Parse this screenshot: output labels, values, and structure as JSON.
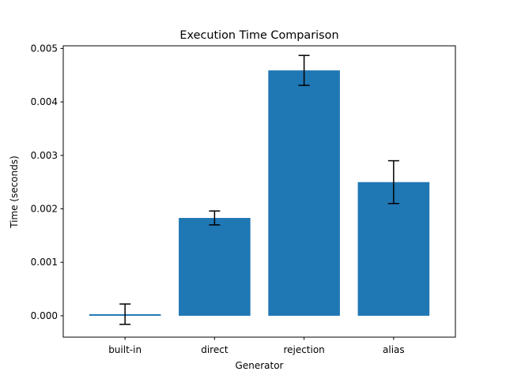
{
  "chart_data": {
    "type": "bar",
    "title": "Execution Time Comparison",
    "xlabel": "Generator",
    "ylabel": "Time (seconds)",
    "categories": [
      "built-in",
      "direct",
      "rejection",
      "alias"
    ],
    "values": [
      3e-05,
      0.00183,
      0.00459,
      0.0025
    ],
    "errors": [
      0.00019,
      0.00013,
      0.00028,
      0.0004
    ],
    "ylim": [
      -0.0004,
      0.00505
    ],
    "yticks": [
      0.0,
      0.001,
      0.002,
      0.003,
      0.004,
      0.005
    ],
    "ytick_labels": [
      "0.000",
      "0.001",
      "0.002",
      "0.003",
      "0.004",
      "0.005"
    ],
    "bar_color": "#1f77b4",
    "error_color": "#000000",
    "grid": false,
    "legend": false
  }
}
